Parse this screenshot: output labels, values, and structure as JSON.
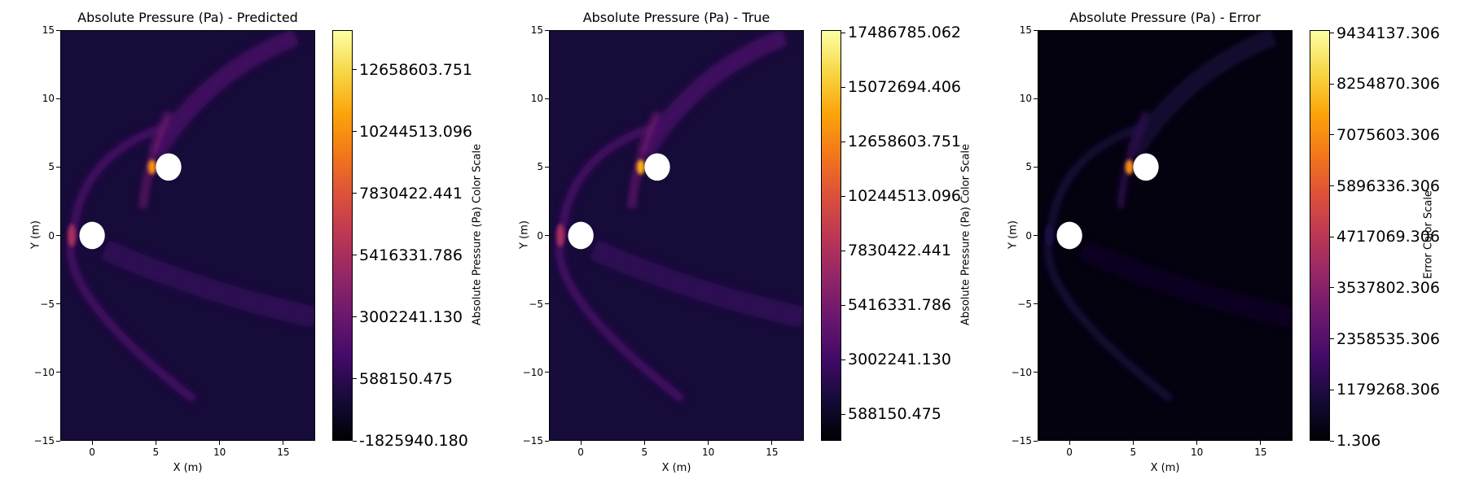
{
  "chart_data": [
    {
      "type": "heatmap",
      "title": "Absolute Pressure (Pa) - Predicted",
      "xlabel": "X (m)",
      "ylabel": "Y (m)",
      "xlim": [
        -2.5,
        17.5
      ],
      "ylim": [
        -15,
        15
      ],
      "x_ticks": [
        0,
        5,
        10,
        15
      ],
      "y_ticks": [
        -15,
        -10,
        -5,
        0,
        5,
        10,
        15
      ],
      "colormap": "inferno",
      "colorbar": {
        "label": "Absolute Pressure (Pa) Color Scale",
        "range": [
          -1825940.18,
          14200000
        ],
        "ticks": [
          "-1825940.180",
          "588150.475",
          "3002241.130",
          "5416331.786",
          "7830422.441",
          "10244513.096",
          "12658603.751"
        ]
      },
      "obstacles": [
        {
          "label": "cylinder",
          "center": [
            0,
            0
          ],
          "radius": 1
        },
        {
          "label": "cylinder",
          "center": [
            6,
            5
          ],
          "radius": 1
        }
      ]
    },
    {
      "type": "heatmap",
      "title": "Absolute Pressure (Pa) - True",
      "xlabel": "X (m)",
      "ylabel": "Y (m)",
      "xlim": [
        -2.5,
        17.5
      ],
      "ylim": [
        -15,
        15
      ],
      "x_ticks": [
        0,
        5,
        10,
        15
      ],
      "y_ticks": [
        -15,
        -10,
        -5,
        0,
        5,
        10,
        15
      ],
      "colormap": "inferno",
      "colorbar": {
        "label": "Absolute Pressure (Pa) Color Scale",
        "range": [
          -600000,
          17600000
        ],
        "ticks": [
          "588150.475",
          "3002241.130",
          "5416331.786",
          "7830422.441",
          "10244513.096",
          "12658603.751",
          "15072694.406",
          "17486785.062"
        ]
      },
      "obstacles": [
        {
          "label": "cylinder",
          "center": [
            0,
            0
          ],
          "radius": 1
        },
        {
          "label": "cylinder",
          "center": [
            6,
            5
          ],
          "radius": 1
        }
      ]
    },
    {
      "type": "heatmap",
      "title": "Absolute Pressure (Pa) - Error",
      "xlabel": "X (m)",
      "ylabel": "Y (m)",
      "xlim": [
        -2.5,
        17.5
      ],
      "ylim": [
        -15,
        15
      ],
      "x_ticks": [
        0,
        5,
        10,
        15
      ],
      "y_ticks": [
        -15,
        -10,
        -5,
        0,
        5,
        10,
        15
      ],
      "colormap": "inferno",
      "colorbar": {
        "label": "Error Color Scale",
        "range": [
          1.306,
          9500000
        ],
        "ticks": [
          "1.306",
          "1179268.306",
          "2358535.306",
          "3537802.306",
          "4717069.306",
          "5896336.306",
          "7075603.306",
          "8254870.306",
          "9434137.306"
        ]
      },
      "obstacles": [
        {
          "label": "cylinder",
          "center": [
            0,
            0
          ],
          "radius": 1
        },
        {
          "label": "cylinder",
          "center": [
            6,
            5
          ],
          "radius": 1
        }
      ]
    }
  ]
}
